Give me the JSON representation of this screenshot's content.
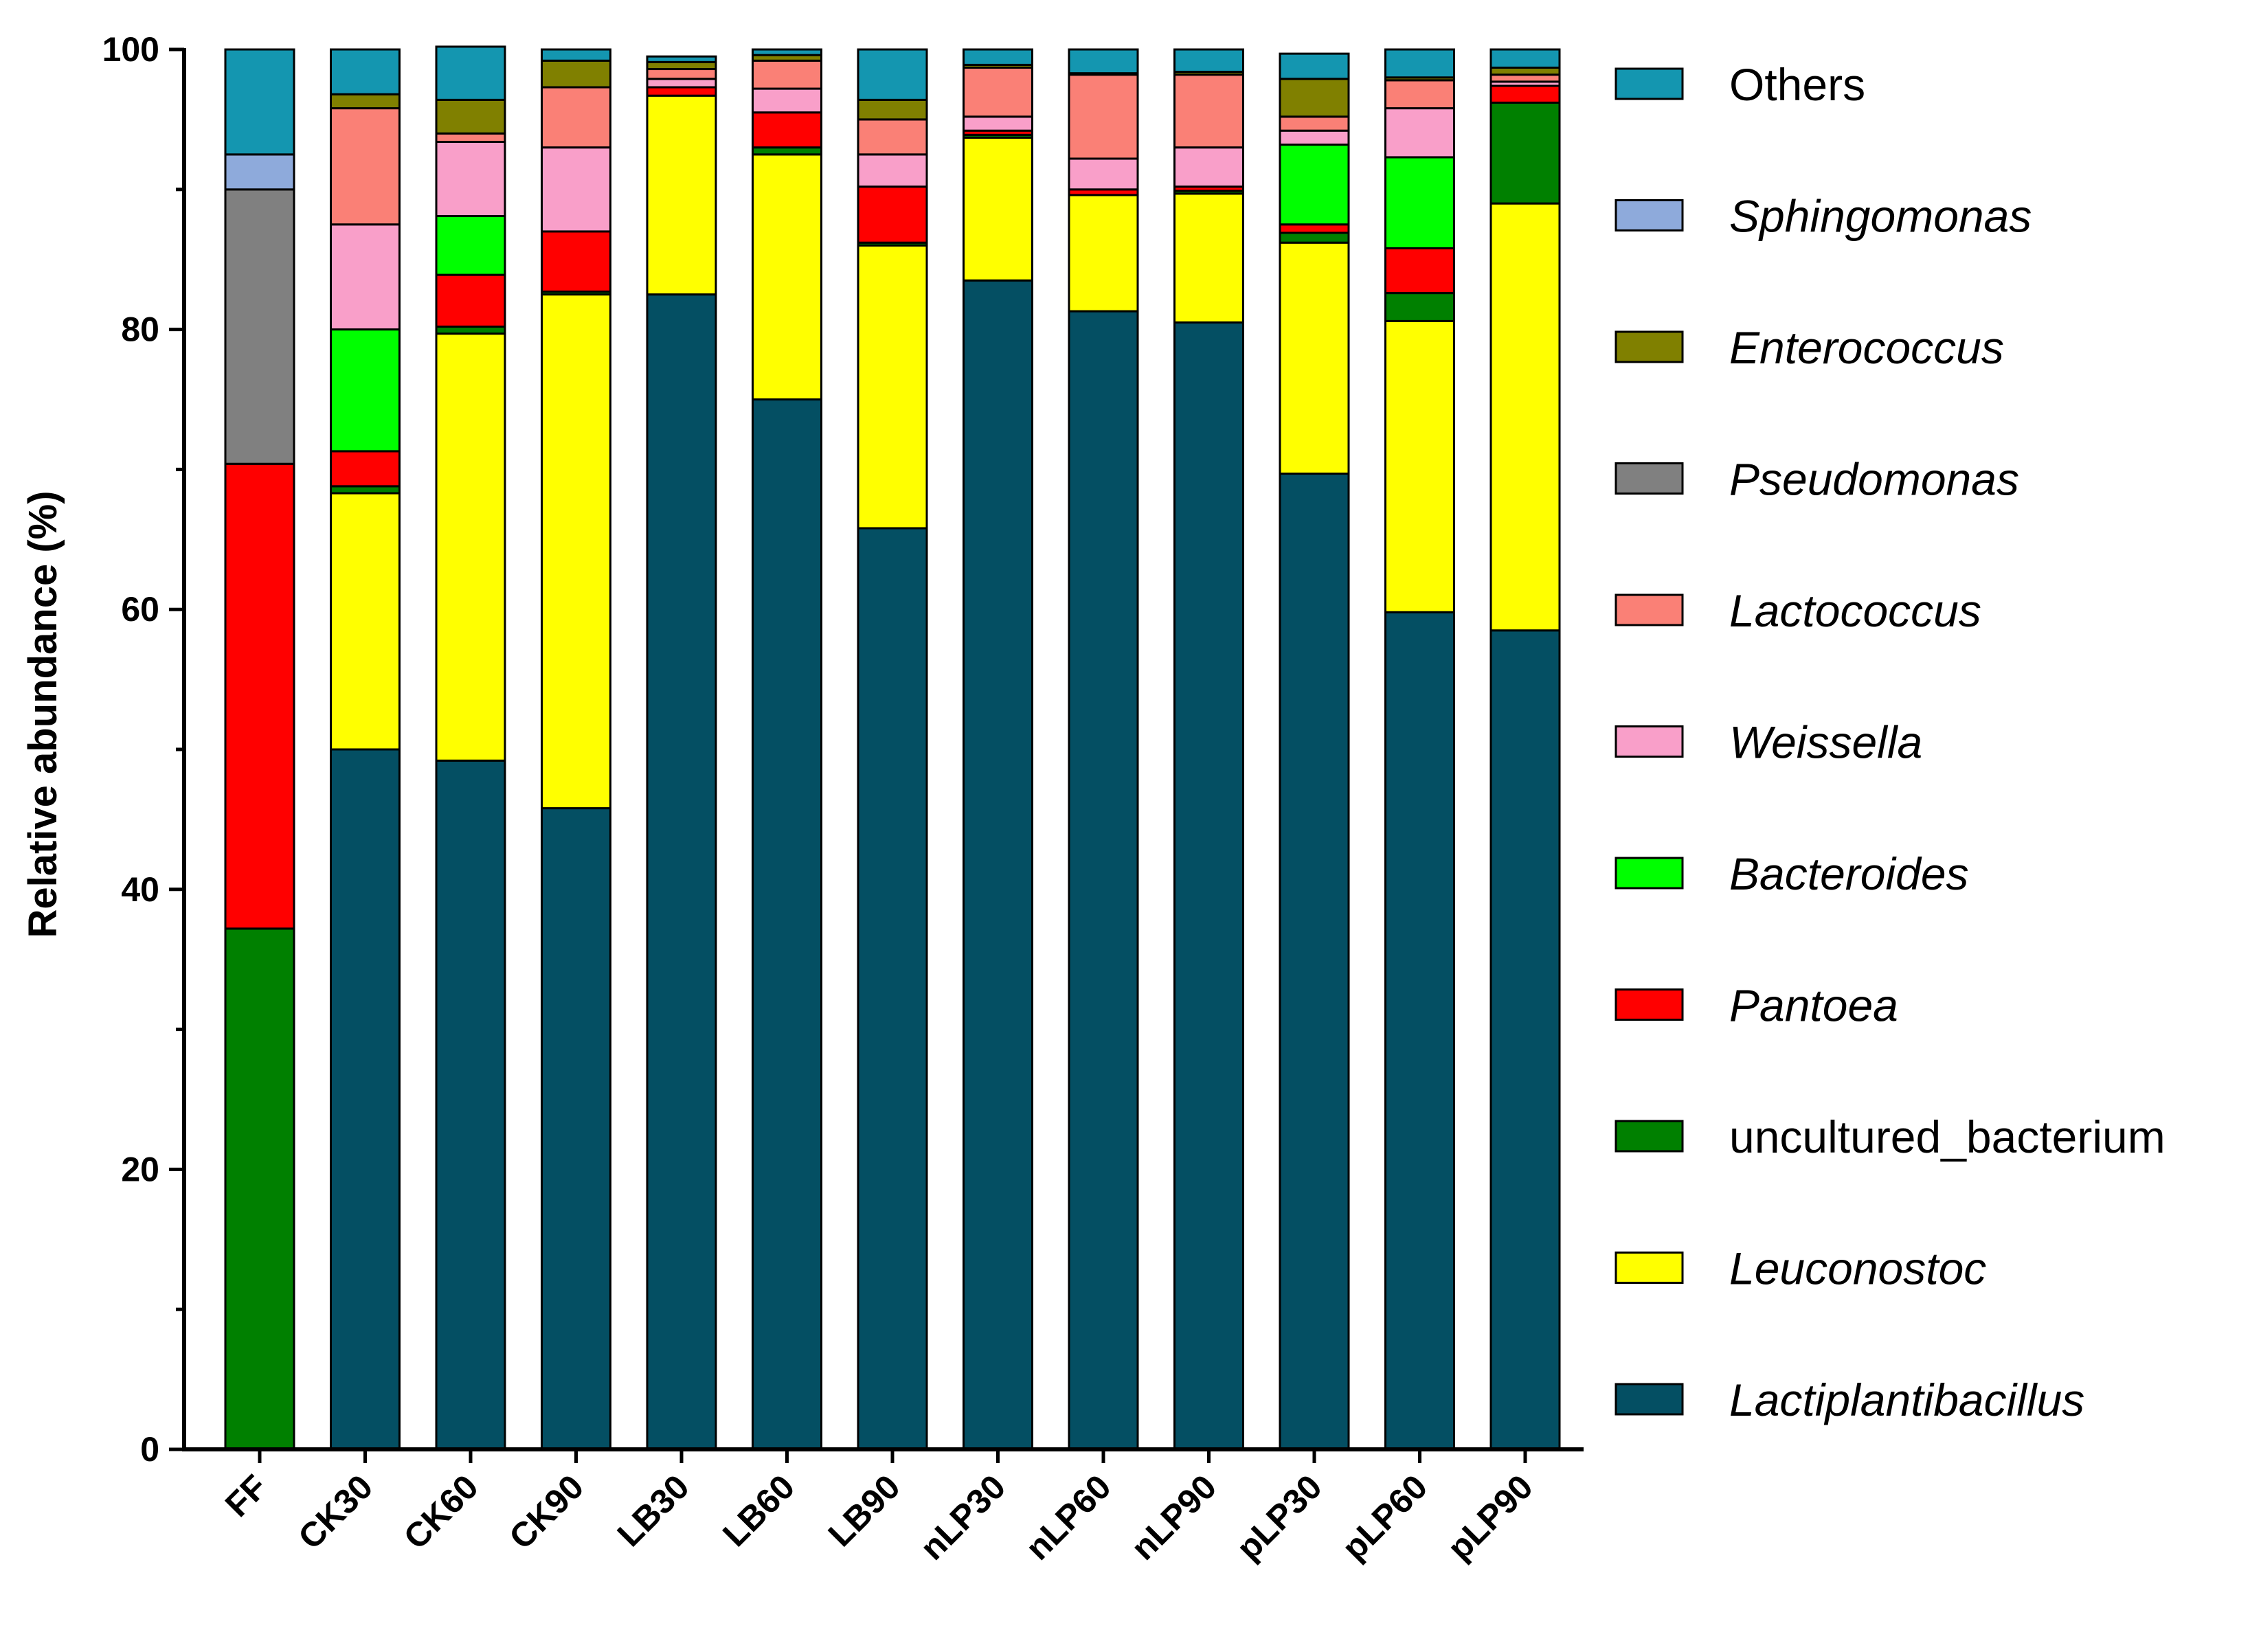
{
  "chart_data": {
    "type": "bar",
    "stacked": true,
    "title": "",
    "xlabel": "",
    "ylabel": "Relative abundance (%)",
    "ylim": [
      0,
      100
    ],
    "yticks": [
      0,
      20,
      40,
      60,
      80,
      100
    ],
    "grid": false,
    "legend_position": "right",
    "categories": [
      "FF",
      "CK30",
      "CK60",
      "CK90",
      "LB30",
      "LB60",
      "LB90",
      "nLP30",
      "nLP60",
      "nLP90",
      "pLP30",
      "pLP60",
      "pLP90"
    ],
    "series": [
      {
        "name": "Lactiplantibacillus",
        "color": "#044f63",
        "italic": true,
        "values": [
          0,
          50,
          49.2,
          45.8,
          82.5,
          75,
          65.8,
          83.5,
          81.3,
          80.5,
          69.7,
          59.8,
          58.5
        ]
      },
      {
        "name": "Leuconostoc",
        "color": "#ffff00",
        "italic": true,
        "values": [
          0,
          18.3,
          30.5,
          36.7,
          14.2,
          17.5,
          20.2,
          10.2,
          8.3,
          9.2,
          16.5,
          20.8,
          30.5
        ]
      },
      {
        "name": "uncultured_bacterium",
        "color": "#008000",
        "italic": false,
        "values": [
          37.2,
          0.5,
          0.5,
          0.2,
          0,
          0.5,
          0.2,
          0.2,
          0,
          0.2,
          0.7,
          2,
          7.2
        ]
      },
      {
        "name": "Pantoea",
        "color": "#ff0000",
        "italic": true,
        "values": [
          33.2,
          2.5,
          3.7,
          4.3,
          0.6,
          2.5,
          4,
          0.3,
          0.4,
          0.3,
          0.6,
          3.2,
          1.2
        ]
      },
      {
        "name": "Bacteroides",
        "color": "#00ff00",
        "italic": true,
        "values": [
          0,
          8.7,
          4.2,
          0,
          0,
          0,
          0,
          0,
          0,
          0,
          5.7,
          6.5,
          0
        ]
      },
      {
        "name": "Weissella",
        "color": "#f99fc9",
        "italic": true,
        "values": [
          0,
          7.5,
          5.3,
          6,
          0.6,
          1.7,
          2.3,
          1,
          2.2,
          2.8,
          1,
          3.5,
          0.3
        ]
      },
      {
        "name": "Lactococcus",
        "color": "#fa8076",
        "italic": true,
        "values": [
          0,
          8.3,
          0.6,
          4.3,
          0.7,
          2,
          2.5,
          3.5,
          6,
          5.2,
          1,
          2,
          0.5
        ]
      },
      {
        "name": "Pseudomonas",
        "color": "#808080",
        "italic": true,
        "values": [
          19.6,
          0,
          0,
          0,
          0,
          0,
          0,
          0,
          0,
          0,
          0,
          0,
          0
        ]
      },
      {
        "name": "Enterococcus",
        "color": "#808000",
        "italic": true,
        "values": [
          0,
          1,
          2.4,
          1.9,
          0.5,
          0.4,
          1.4,
          0.2,
          0.1,
          0.2,
          2.7,
          0.2,
          0.5
        ]
      },
      {
        "name": "Sphingomonas",
        "color": "#8eaadb",
        "italic": true,
        "values": [
          2.5,
          0,
          0,
          0,
          0,
          0,
          0,
          0,
          0,
          0,
          0,
          0,
          0
        ]
      },
      {
        "name": "Others",
        "color": "#1496b0",
        "italic": false,
        "values": [
          7.5,
          3.2,
          3.8,
          0.8,
          0.4,
          0.4,
          3.6,
          1.1,
          1.7,
          1.6,
          1.8,
          2,
          1.3
        ]
      }
    ]
  }
}
